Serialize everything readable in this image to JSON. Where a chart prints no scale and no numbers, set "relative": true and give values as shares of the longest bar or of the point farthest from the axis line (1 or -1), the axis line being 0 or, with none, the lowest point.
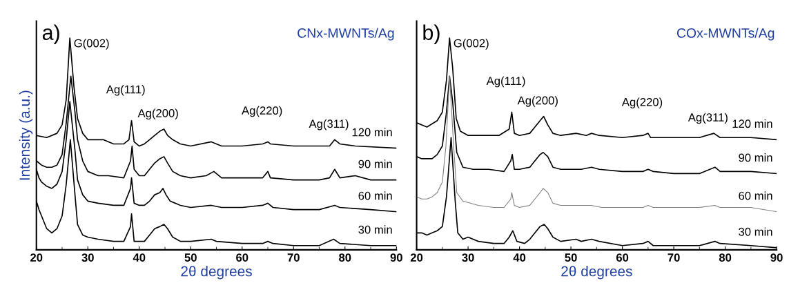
{
  "chart_data": [
    {
      "type": "line",
      "title": "CNx-MWNTs/Ag",
      "xlabel": "2θ degrees",
      "ylabel": "Intensity (a.u.)",
      "relative": true,
      "xlim": [
        20,
        90
      ],
      "xticks": [
        20,
        30,
        40,
        50,
        60,
        70,
        80,
        90
      ],
      "grid": false,
      "legend": false,
      "marker": "none",
      "line_style": "solid",
      "annotations": [
        "a)",
        {
          "text": "G(002)",
          "x": 26.5,
          "y": 1.0
        },
        {
          "text": "Ag(111)",
          "x": 38.5,
          "y": 0.61
        },
        {
          "text": "Ag(200)",
          "x": 44.8,
          "y": 0.57
        },
        {
          "text": "Ag(220)",
          "x": 65,
          "y": 0.51
        },
        {
          "text": "Ag(311)",
          "x": 78,
          "y": 0.52
        }
      ],
      "series": [
        {
          "name": "120 min",
          "color": "#000000",
          "x": [
            20,
            22,
            24,
            25,
            25.8,
            26.5,
            27.3,
            28,
            29,
            30,
            32,
            33,
            35,
            37,
            38,
            38.5,
            39,
            40,
            41,
            42,
            43,
            44,
            44.8,
            45.5,
            46.5,
            48,
            50,
            54,
            56,
            60,
            64,
            65,
            65.5,
            70,
            75,
            77,
            78,
            79,
            82,
            90
          ],
          "values": [
            0.54,
            0.53,
            0.55,
            0.59,
            0.71,
            1.0,
            0.77,
            0.62,
            0.55,
            0.52,
            0.52,
            0.52,
            0.5,
            0.5,
            0.52,
            0.61,
            0.51,
            0.49,
            0.5,
            0.52,
            0.54,
            0.56,
            0.57,
            0.54,
            0.52,
            0.5,
            0.49,
            0.51,
            0.49,
            0.49,
            0.5,
            0.51,
            0.5,
            0.49,
            0.49,
            0.49,
            0.52,
            0.5,
            0.49,
            0.48
          ]
        },
        {
          "name": "90 min",
          "color": "#000000",
          "x": [
            20,
            21,
            22,
            23,
            24,
            25,
            25.8,
            26.7,
            27.5,
            28,
            29,
            30,
            32,
            34,
            37,
            38.3,
            38.6,
            39,
            40,
            41,
            42,
            43,
            44,
            44.8,
            45.5,
            46.5,
            48,
            50,
            53,
            54.5,
            56,
            60,
            64,
            65,
            65.5,
            70,
            75,
            77,
            78,
            79,
            82,
            85,
            90
          ],
          "values": [
            0.42,
            0.4,
            0.39,
            0.39,
            0.4,
            0.45,
            0.6,
            0.82,
            0.65,
            0.52,
            0.42,
            0.37,
            0.35,
            0.35,
            0.34,
            0.42,
            0.49,
            0.38,
            0.35,
            0.35,
            0.38,
            0.41,
            0.43,
            0.44,
            0.41,
            0.37,
            0.35,
            0.34,
            0.35,
            0.37,
            0.34,
            0.34,
            0.34,
            0.37,
            0.34,
            0.33,
            0.33,
            0.34,
            0.38,
            0.34,
            0.35,
            0.33,
            0.33
          ]
        },
        {
          "name": "60 min",
          "color": "#000000",
          "x": [
            20,
            20.5,
            21,
            22,
            23,
            24,
            25,
            25.8,
            26.5,
            27.5,
            28,
            29,
            30,
            32,
            35,
            37,
            38.3,
            38.5,
            39,
            40,
            41,
            42,
            43,
            44,
            44.6,
            45.2,
            46,
            48,
            50,
            54,
            56,
            60,
            64,
            65,
            66,
            70,
            75,
            78,
            79,
            85,
            90
          ],
          "values": [
            0.38,
            0.34,
            0.32,
            0.3,
            0.29,
            0.31,
            0.37,
            0.52,
            0.7,
            0.47,
            0.33,
            0.26,
            0.23,
            0.22,
            0.21,
            0.21,
            0.29,
            0.34,
            0.22,
            0.21,
            0.21,
            0.23,
            0.26,
            0.27,
            0.29,
            0.26,
            0.23,
            0.21,
            0.2,
            0.21,
            0.2,
            0.2,
            0.21,
            0.22,
            0.2,
            0.19,
            0.19,
            0.21,
            0.2,
            0.19,
            0.18
          ]
        },
        {
          "name": "30 min",
          "color": "#000000",
          "x": [
            20,
            20.5,
            21,
            22,
            23,
            24,
            25,
            25.8,
            26.6,
            27.5,
            28,
            29,
            30,
            32,
            35,
            37,
            38.3,
            38.5,
            39,
            40,
            41,
            42,
            43,
            44,
            44.8,
            45.5,
            46.5,
            48,
            50,
            54,
            55,
            60,
            64,
            65,
            66,
            70,
            75,
            77.8,
            79,
            85,
            90
          ],
          "values": [
            0.23,
            0.19,
            0.16,
            0.1,
            0.08,
            0.1,
            0.16,
            0.31,
            0.52,
            0.26,
            0.12,
            0.07,
            0.06,
            0.05,
            0.04,
            0.04,
            0.11,
            0.17,
            0.04,
            0.04,
            0.04,
            0.07,
            0.1,
            0.11,
            0.12,
            0.1,
            0.06,
            0.04,
            0.04,
            0.05,
            0.04,
            0.03,
            0.03,
            0.04,
            0.03,
            0.02,
            0.02,
            0.05,
            0.03,
            0.02,
            0.02
          ]
        }
      ]
    },
    {
      "type": "line",
      "title": "COx-MWNTs/Ag",
      "xlabel": "2θ degrees",
      "relative": true,
      "xlim": [
        20,
        90
      ],
      "xticks": [
        20,
        30,
        40,
        50,
        60,
        70,
        80,
        90
      ],
      "grid": false,
      "legend": false,
      "marker": "none",
      "line_style": "solid",
      "annotations": [
        "b)",
        {
          "text": "G(002)",
          "x": 26.4,
          "y": 1.0
        },
        {
          "text": "Ag(111)",
          "x": 38.5,
          "y": 0.65
        },
        {
          "text": "Ag(200)",
          "x": 44.7,
          "y": 0.63
        },
        {
          "text": "Ag(220)",
          "x": 65,
          "y": 0.55
        },
        {
          "text": "Ag(311)",
          "x": 77.8,
          "y": 0.55
        }
      ],
      "series": [
        {
          "name": "120 min",
          "color": "#000000",
          "x": [
            20,
            22,
            24,
            25,
            25.8,
            26.4,
            27,
            27.7,
            28.5,
            30,
            33,
            36,
            38,
            38.5,
            39,
            40,
            42,
            43,
            44,
            44.7,
            45.5,
            46.5,
            48,
            51,
            53,
            54,
            55.5,
            60,
            64,
            65,
            65.5,
            70,
            75,
            77.8,
            79,
            85,
            90
          ],
          "values": [
            0.6,
            0.58,
            0.61,
            0.65,
            0.8,
            1.0,
            0.86,
            0.62,
            0.56,
            0.54,
            0.54,
            0.54,
            0.57,
            0.65,
            0.55,
            0.54,
            0.55,
            0.58,
            0.61,
            0.63,
            0.59,
            0.55,
            0.54,
            0.55,
            0.54,
            0.55,
            0.54,
            0.53,
            0.54,
            0.55,
            0.53,
            0.53,
            0.53,
            0.55,
            0.53,
            0.53,
            0.52
          ]
        },
        {
          "name": "90 min",
          "color": "#000000",
          "x": [
            20,
            21,
            22,
            23,
            24,
            25,
            25.8,
            26.4,
            27,
            27.8,
            29,
            31,
            34,
            37,
            38.3,
            38.6,
            39,
            40,
            42,
            43,
            44,
            44.6,
            45.5,
            46.5,
            48,
            52,
            54,
            55.5,
            60,
            64,
            65,
            66,
            70,
            75,
            78,
            79,
            85,
            90
          ],
          "values": [
            0.44,
            0.43,
            0.43,
            0.43,
            0.45,
            0.49,
            0.65,
            0.82,
            0.7,
            0.46,
            0.39,
            0.38,
            0.38,
            0.37,
            0.42,
            0.45,
            0.38,
            0.38,
            0.39,
            0.42,
            0.45,
            0.46,
            0.44,
            0.39,
            0.38,
            0.38,
            0.39,
            0.38,
            0.37,
            0.37,
            0.38,
            0.37,
            0.36,
            0.36,
            0.39,
            0.37,
            0.37,
            0.36
          ]
        },
        {
          "name": "60 min",
          "color": "#808080",
          "x": [
            20,
            21,
            22,
            23,
            24,
            25,
            25.7,
            26.4,
            27.2,
            27.8,
            29,
            32,
            35,
            37,
            38.3,
            38.5,
            39,
            40,
            42,
            43,
            44,
            44.6,
            45.5,
            46.5,
            48,
            52,
            54,
            56,
            60,
            64,
            65,
            66,
            70,
            75,
            78,
            79,
            85,
            90
          ],
          "values": [
            0.25,
            0.24,
            0.24,
            0.25,
            0.27,
            0.32,
            0.49,
            0.82,
            0.49,
            0.27,
            0.23,
            0.21,
            0.2,
            0.2,
            0.24,
            0.27,
            0.21,
            0.2,
            0.21,
            0.24,
            0.27,
            0.29,
            0.27,
            0.22,
            0.21,
            0.21,
            0.21,
            0.2,
            0.2,
            0.2,
            0.21,
            0.2,
            0.2,
            0.2,
            0.21,
            0.2,
            0.2,
            0.18
          ]
        },
        {
          "name": "30 min",
          "color": "#000000",
          "x": [
            20,
            21,
            22,
            23,
            24,
            25,
            25.8,
            26.7,
            27.5,
            28,
            29,
            30,
            32,
            35,
            37,
            38,
            38.7,
            39.5,
            41,
            42,
            43,
            44,
            44.8,
            45.5,
            46.5,
            48,
            51,
            52,
            54,
            55.5,
            60,
            64,
            65,
            66,
            70,
            75,
            78,
            79,
            85,
            90
          ],
          "values": [
            0.08,
            0.08,
            0.07,
            0.08,
            0.09,
            0.11,
            0.25,
            0.53,
            0.23,
            0.08,
            0.05,
            0.06,
            0.04,
            0.03,
            0.03,
            0.06,
            0.09,
            0.04,
            0.03,
            0.05,
            0.08,
            0.11,
            0.12,
            0.1,
            0.06,
            0.04,
            0.05,
            0.04,
            0.05,
            0.04,
            0.02,
            0.03,
            0.04,
            0.02,
            0.02,
            0.02,
            0.04,
            0.03,
            0.02,
            0.01
          ]
        }
      ]
    }
  ]
}
